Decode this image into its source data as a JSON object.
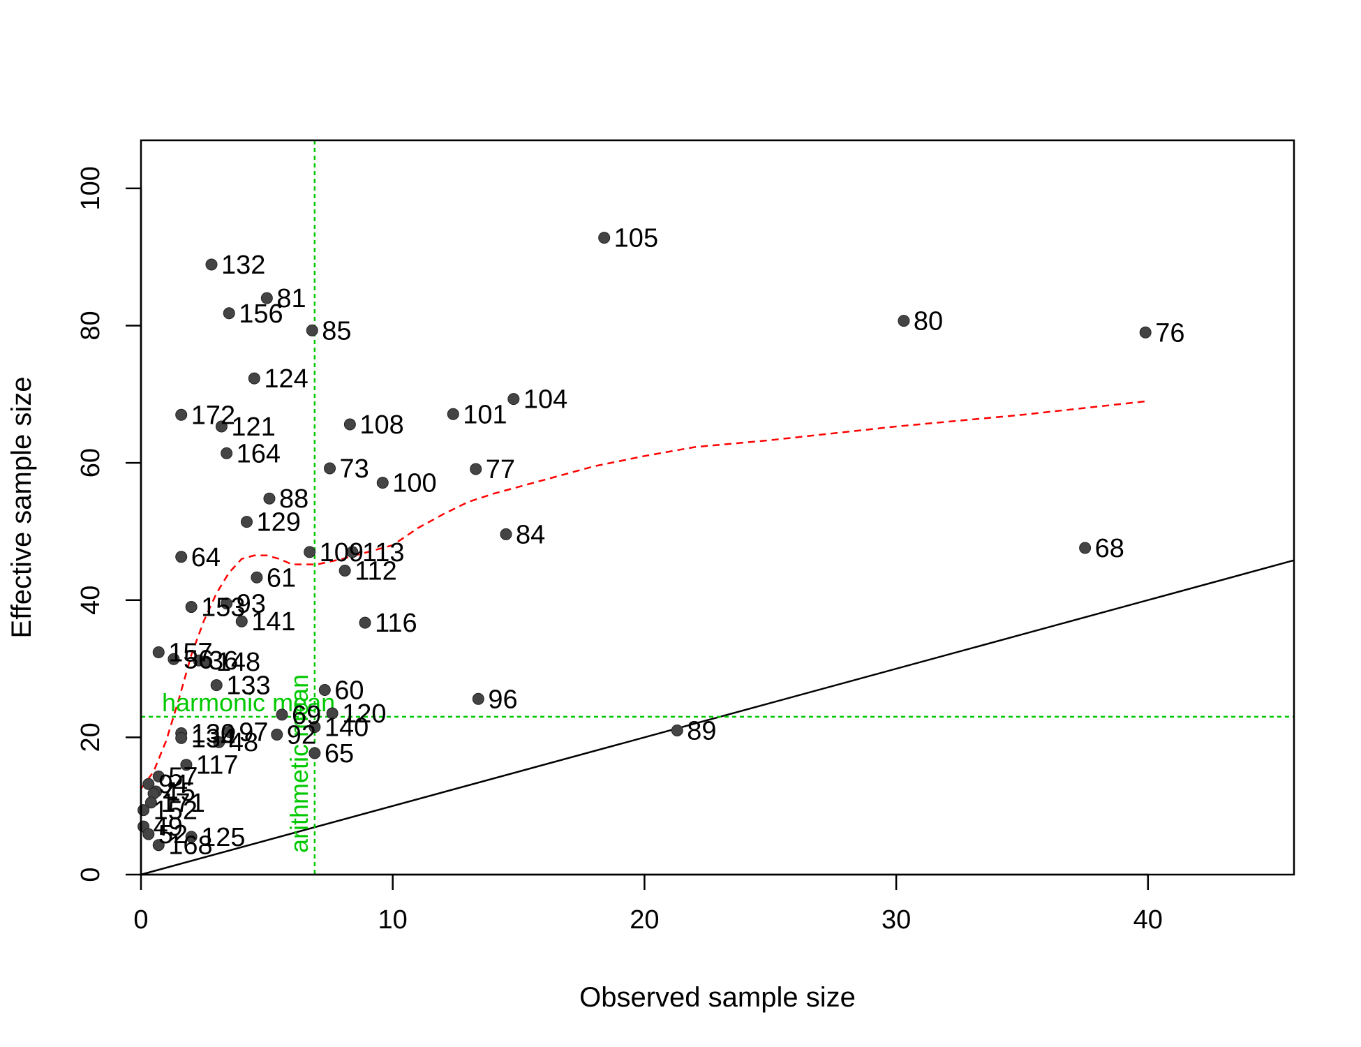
{
  "chart_data": {
    "type": "scatter",
    "title": "",
    "xlabel": "Observed sample size",
    "ylabel": "Effective sample size",
    "xlim": [
      0,
      45.8
    ],
    "ylim": [
      0,
      107
    ],
    "xticks": [
      "0",
      "10",
      "20",
      "30",
      "40"
    ],
    "yticks": [
      "0",
      "20",
      "40",
      "60",
      "80",
      "100"
    ],
    "grid": false,
    "legend": "none",
    "colors": {
      "points": "#444444",
      "trend": "#ff0000",
      "reference": "#00c800",
      "identity": "#000000"
    },
    "points": [
      {
        "label": "105",
        "x": 18.4,
        "y": 92.8
      },
      {
        "label": "132",
        "x": 2.8,
        "y": 88.9
      },
      {
        "label": "81",
        "x": 5.0,
        "y": 84.0
      },
      {
        "label": "156",
        "x": 3.5,
        "y": 81.8
      },
      {
        "label": "85",
        "x": 6.8,
        "y": 79.3
      },
      {
        "label": "80",
        "x": 30.3,
        "y": 80.7
      },
      {
        "label": "76",
        "x": 39.9,
        "y": 79.0
      },
      {
        "label": "124",
        "x": 4.5,
        "y": 72.3
      },
      {
        "label": "104",
        "x": 14.8,
        "y": 69.3
      },
      {
        "label": "101",
        "x": 12.4,
        "y": 67.1
      },
      {
        "label": "172",
        "x": 1.6,
        "y": 67.0
      },
      {
        "label": "108",
        "x": 8.3,
        "y": 65.6
      },
      {
        "label": "121",
        "x": 3.2,
        "y": 65.3
      },
      {
        "label": "164",
        "x": 3.4,
        "y": 61.4
      },
      {
        "label": "73",
        "x": 7.5,
        "y": 59.2
      },
      {
        "label": "77",
        "x": 13.3,
        "y": 59.1
      },
      {
        "label": "100",
        "x": 9.6,
        "y": 57.1
      },
      {
        "label": "88",
        "x": 5.1,
        "y": 54.8
      },
      {
        "label": "129",
        "x": 4.2,
        "y": 51.4
      },
      {
        "label": "84",
        "x": 14.5,
        "y": 49.6
      },
      {
        "label": "68",
        "x": 37.5,
        "y": 47.6
      },
      {
        "label": "109",
        "x": 6.7,
        "y": 47.0
      },
      {
        "label": "113",
        "x": 8.4,
        "y": 47.0
      },
      {
        "label": "64",
        "x": 1.6,
        "y": 46.3
      },
      {
        "label": "112",
        "x": 8.1,
        "y": 44.3
      },
      {
        "label": "61",
        "x": 4.6,
        "y": 43.3
      },
      {
        "label": "153",
        "x": 2.0,
        "y": 39.0
      },
      {
        "label": "93",
        "x": 3.4,
        "y": 39.5
      },
      {
        "label": "141",
        "x": 4.0,
        "y": 36.9
      },
      {
        "label": "116",
        "x": 8.9,
        "y": 36.7
      },
      {
        "label": "157",
        "x": 0.7,
        "y": 32.4
      },
      {
        "label": "56",
        "x": 1.3,
        "y": 31.4
      },
      {
        "label": "36",
        "x": 2.3,
        "y": 31.2
      },
      {
        "label": "148",
        "x": 2.6,
        "y": 31.0
      },
      {
        "label": "133",
        "x": 3.0,
        "y": 27.6
      },
      {
        "label": "60",
        "x": 7.3,
        "y": 26.9
      },
      {
        "label": "96",
        "x": 13.4,
        "y": 25.6
      },
      {
        "label": "120",
        "x": 7.6,
        "y": 23.5
      },
      {
        "label": "69",
        "x": 5.6,
        "y": 23.3
      },
      {
        "label": "140",
        "x": 6.9,
        "y": 21.5
      },
      {
        "label": "97",
        "x": 3.5,
        "y": 20.8
      },
      {
        "label": "130",
        "x": 1.6,
        "y": 20.6
      },
      {
        "label": "89",
        "x": 21.3,
        "y": 21.0
      },
      {
        "label": "92",
        "x": 5.4,
        "y": 20.4
      },
      {
        "label": "134",
        "x": 1.6,
        "y": 19.9
      },
      {
        "label": "48",
        "x": 3.1,
        "y": 19.3
      },
      {
        "label": "65",
        "x": 6.9,
        "y": 17.7
      },
      {
        "label": "117",
        "x": 1.8,
        "y": 16.0
      },
      {
        "label": "57",
        "x": 0.7,
        "y": 14.3
      },
      {
        "label": "94",
        "x": 0.3,
        "y": 13.2
      },
      {
        "label": "15",
        "x": 0.6,
        "y": 12.1
      },
      {
        "label": "4",
        "x": 0.5,
        "y": 11.8
      },
      {
        "label": "171",
        "x": 0.4,
        "y": 10.5
      },
      {
        "label": "152",
        "x": 0.1,
        "y": 9.4
      },
      {
        "label": "49",
        "x": 0.1,
        "y": 7.0
      },
      {
        "label": "52",
        "x": 0.3,
        "y": 5.9
      },
      {
        "label": "125",
        "x": 2.0,
        "y": 5.5
      },
      {
        "label": "168",
        "x": 0.7,
        "y": 4.3
      }
    ],
    "trend_line": {
      "style": "dashed",
      "x": [
        0.0,
        0.5,
        1.0,
        1.5,
        2.0,
        2.5,
        3.0,
        3.5,
        4.0,
        4.5,
        5.0,
        5.5,
        6.0,
        7.0,
        8.0,
        9.0,
        10.0,
        11.0,
        12.0,
        13.0,
        14.0,
        16.0,
        18.0,
        20.0,
        22.0,
        25.0,
        30.0,
        35.0,
        40.0
      ],
      "y": [
        12.5,
        15.0,
        19.5,
        25.5,
        32.0,
        37.0,
        41.0,
        44.0,
        46.0,
        46.5,
        46.5,
        46.0,
        45.2,
        45.2,
        46.0,
        47.0,
        48.0,
        50.5,
        52.5,
        54.3,
        55.5,
        57.5,
        59.5,
        61.0,
        62.3,
        63.3,
        65.3,
        67.0,
        69.0
      ]
    },
    "identity_line": {
      "style": "solid",
      "x": [
        0,
        45.8
      ],
      "y": [
        0,
        45.8
      ]
    },
    "reference_lines": [
      {
        "orientation": "horizontal",
        "value": 23.0,
        "label": "harmonic mean"
      },
      {
        "orientation": "vertical",
        "value": 6.9,
        "label": "arithmetic mean"
      }
    ]
  }
}
